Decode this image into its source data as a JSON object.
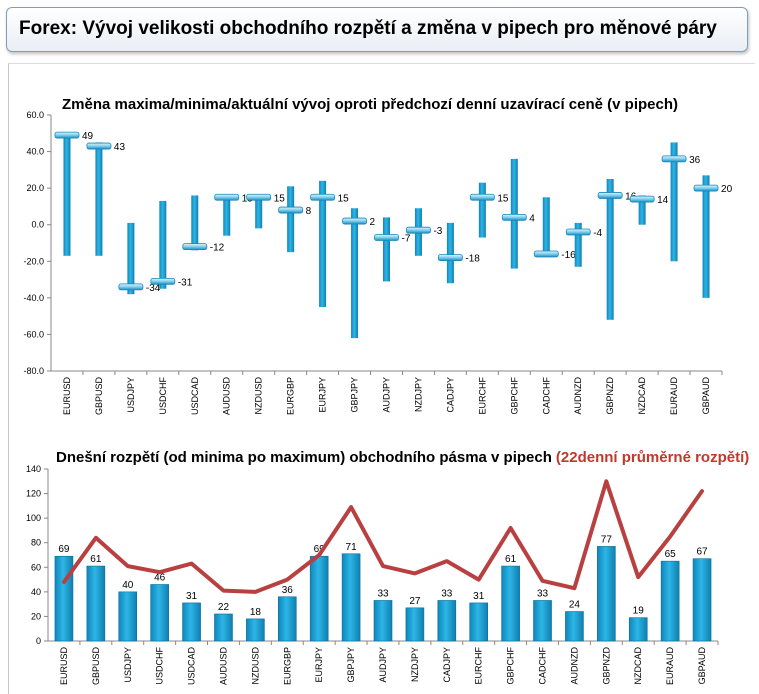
{
  "page": {
    "title": "Forex: Vývoj velikosti obchodního rozpětí a změna v pipech pro měnové páry"
  },
  "colors": {
    "bar": "#1aa3d6",
    "bar_dark": "#0f7fb0",
    "line": "#b84040",
    "highlight_text": "#c0392b"
  },
  "chart_data": [
    {
      "type": "bar",
      "title": "Změna maxima/minima/aktuální vývoj oproti předchozí denní uzavírací ceně (v pipech)",
      "categories": [
        "EURUSD",
        "GBPUSD",
        "USDJPY",
        "USDCHF",
        "USDCAD",
        "AUDUSD",
        "NZDUSD",
        "EURGBP",
        "EURJPY",
        "GBPJPY",
        "AUDJPY",
        "NZDJPY",
        "CADJPY",
        "EURCHF",
        "GBPCHF",
        "CADCHF",
        "AUDNZD",
        "GBPNZD",
        "NZDCAD",
        "EURAUD",
        "GBPAUD"
      ],
      "series": [
        {
          "values_max": [
            50,
            45,
            1,
            13,
            16,
            16,
            16,
            21,
            24,
            9,
            4,
            9,
            1,
            23,
            36,
            15,
            1,
            25,
            16,
            45,
            27
          ]
        },
        {
          "values_min": [
            -17,
            -17,
            -38,
            -35,
            -14,
            -6,
            -2,
            -15,
            -45,
            -62,
            -31,
            -17,
            -32,
            -7,
            -24,
            -16,
            -23,
            -52,
            0,
            -20,
            -40
          ]
        },
        {
          "values_current": [
            49,
            43,
            -34,
            -31,
            -12,
            15,
            15,
            8,
            15,
            2,
            -7,
            -3,
            -18,
            15,
            4,
            -16,
            -4,
            16,
            14,
            36,
            20
          ]
        }
      ],
      "labels": [
        "49",
        "43",
        "-34",
        "-31",
        "-12",
        "15",
        "15",
        "8",
        "15",
        "2",
        "-7",
        "-3",
        "-18",
        "15",
        "4",
        "-16",
        "-4",
        "16",
        "14",
        "36",
        "20"
      ],
      "yticks": [
        "60.0",
        "40.0",
        "20.0",
        "0.0",
        "-20.0",
        "-40.0",
        "-60.0",
        "-80.0"
      ],
      "ylim": [
        -80,
        60
      ]
    },
    {
      "type": "bar",
      "title_main": "Dnešní rozpětí (od minima po maximum) obchodního pásma v pipech",
      "title_highlight": "(22denní průměrné rozpětí)",
      "categories": [
        "EURUSD",
        "GBPUSD",
        "USDJPY",
        "USDCHF",
        "USDCAD",
        "AUDUSD",
        "NZDUSD",
        "EURGBP",
        "EURJPY",
        "GBPJPY",
        "AUDJPY",
        "NZDJPY",
        "CADJPY",
        "EURCHF",
        "GBPCHF",
        "CADCHF",
        "AUDNZD",
        "GBPNZD",
        "NZDCAD",
        "EURAUD",
        "GBPAUD"
      ],
      "values": [
        69,
        61,
        40,
        46,
        31,
        22,
        18,
        36,
        69,
        71,
        33,
        27,
        33,
        31,
        61,
        33,
        24,
        77,
        19,
        65,
        67
      ],
      "line_values": [
        48,
        84,
        61,
        56,
        63,
        41,
        40,
        50,
        70,
        109,
        61,
        55,
        65,
        50,
        92,
        49,
        43,
        130,
        52,
        85,
        122
      ],
      "yticks": [
        "140",
        "120",
        "100",
        "80",
        "60",
        "40",
        "20",
        "0"
      ],
      "ylim": [
        0,
        140
      ]
    }
  ]
}
